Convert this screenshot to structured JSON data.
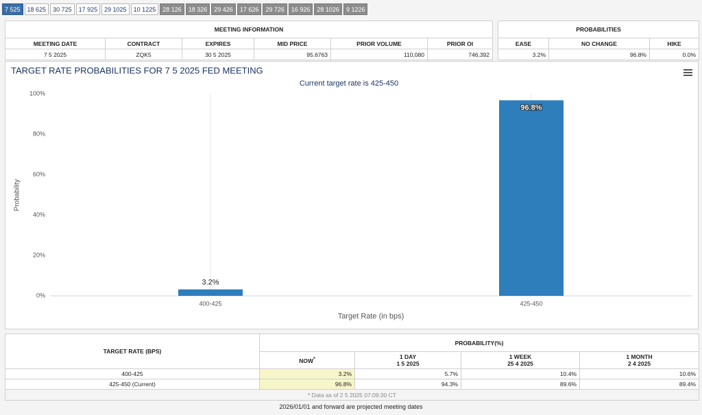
{
  "tabs": [
    "7 525",
    "18 625",
    "30 725",
    "17 925",
    "29 1025",
    "10 1225",
    "28 126",
    "18 326",
    "29 426",
    "17 626",
    "29 726",
    "16 926",
    "28 1026",
    "9 1226"
  ],
  "meeting_info": {
    "title": "MEETING INFORMATION",
    "headers": [
      "MEETING DATE",
      "CONTRACT",
      "EXPIRES",
      "MID PRICE",
      "PRIOR VOLUME",
      "PRIOR OI"
    ],
    "row": [
      "7 5 2025",
      "ZQK5",
      "30 5 2025",
      "95.6763",
      "110,080",
      "746,392"
    ]
  },
  "probabilities": {
    "title": "PROBABILITIES",
    "headers": [
      "EASE",
      "NO CHANGE",
      "HIKE"
    ],
    "row": [
      "3.2%",
      "96.8%",
      "0.0%"
    ]
  },
  "chart_data": {
    "type": "bar",
    "title": "TARGET RATE PROBABILITIES FOR 7 5 2025 FED MEETING",
    "subtitle": "Current target rate is 425-450",
    "x_label": "Target Rate (in bps)",
    "y_label": "Probability",
    "categories": [
      "400-425",
      "425-450"
    ],
    "values": [
      3.2,
      96.8
    ],
    "value_labels": [
      "3.2%",
      "96.8%"
    ],
    "color": "#2e7ebc",
    "ylim": [
      0,
      100
    ],
    "yticks": [
      {
        "value": 0,
        "label": "0%"
      },
      {
        "value": 20,
        "label": "20%"
      },
      {
        "value": 40,
        "label": "40%"
      },
      {
        "value": 60,
        "label": "60%"
      },
      {
        "value": 80,
        "label": "80%"
      },
      {
        "value": 100,
        "label": "100%"
      }
    ],
    "grid": false,
    "x_grid": true
  },
  "rate_table": {
    "row_header": "TARGET RATE (BPS)",
    "group_header": "PROBABILITY(%)",
    "now_label": "NOW",
    "now_mark": "*",
    "columns": [
      {
        "label": "1 DAY",
        "date": "1 5 2025"
      },
      {
        "label": "1 WEEK",
        "date": "25 4 2025"
      },
      {
        "label": "1 MONTH",
        "date": "2 4 2025"
      }
    ],
    "rows": [
      [
        "400-425",
        "3.2%",
        "5.7%",
        "10.4%",
        "10.6%"
      ],
      [
        "425-450 (Current)",
        "96.8%",
        "94.3%",
        "89.6%",
        "89.4%"
      ]
    ],
    "note": "* Data as of 2 5 2025 07:09:30 CT"
  },
  "footer": "2026/01/01 and forward are projected meeting dates"
}
